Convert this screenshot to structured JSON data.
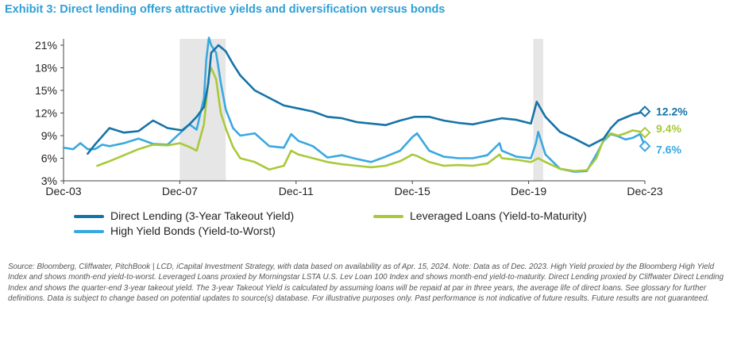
{
  "title": "Exhibit 3: Direct lending offers attractive yields and diversification versus bonds",
  "source_note": "Source: Bloomberg, Cliffwater, PitchBook | LCD, iCapital Investment Strategy, with data based on availability as of Apr. 15, 2024. Note: Data as of Dec. 2023. High Yield proxied by the Bloomberg High Yield Index and shows month-end yield-to-worst. Leveraged Loans proxied by Morningstar LSTA U.S. Lev Loan 100 Index and shows month-end yield-to-maturity. Direct Lending proxied by Cliffwater Direct Lending Index and shows the quarter-end 3-year takeout yield. The 3-year Takeout Yield is calculated by assuming loans will be repaid at par in three years, the average life of direct loans. See glossary for further definitions. Data is subject to change based on potential updates to source(s) database. For illustrative purposes only. Past performance is not indicative of future results. Future results are not guaranteed.",
  "chart_data": {
    "type": "line",
    "x_ticks": [
      "Dec-03",
      "Dec-07",
      "Dec-11",
      "Dec-15",
      "Dec-19",
      "Dec-23"
    ],
    "y_ticks": [
      "3%",
      "6%",
      "9%",
      "12%",
      "15%",
      "18%",
      "21%"
    ],
    "ylim": [
      3,
      22
    ],
    "xlim": [
      2003.92,
      2023.92
    ],
    "grid": false,
    "legend_position": "bottom",
    "recession_shading": [
      [
        2007.92,
        2009.5
      ],
      [
        2020.08,
        2020.42
      ]
    ],
    "series": [
      {
        "name": "Direct Lending (3-Year Takeout Yield)",
        "color": "#1673a8",
        "end_label": "12.2%",
        "points": [
          [
            2004.75,
            6.6
          ],
          [
            2005.0,
            7.8
          ],
          [
            2005.5,
            10.0
          ],
          [
            2006.0,
            9.4
          ],
          [
            2006.5,
            9.6
          ],
          [
            2007.0,
            11.0
          ],
          [
            2007.5,
            10.0
          ],
          [
            2008.0,
            9.7
          ],
          [
            2008.25,
            10.5
          ],
          [
            2008.5,
            11.5
          ],
          [
            2008.75,
            12.8
          ],
          [
            2008.9,
            16.0
          ],
          [
            2009.0,
            20.0
          ],
          [
            2009.25,
            21.0
          ],
          [
            2009.5,
            20.2
          ],
          [
            2009.75,
            18.5
          ],
          [
            2010.0,
            17.0
          ],
          [
            2010.5,
            15.0
          ],
          [
            2011.0,
            14.0
          ],
          [
            2011.5,
            13.0
          ],
          [
            2012.0,
            12.6
          ],
          [
            2012.5,
            12.2
          ],
          [
            2013.0,
            11.5
          ],
          [
            2013.5,
            11.3
          ],
          [
            2014.0,
            10.8
          ],
          [
            2014.5,
            10.6
          ],
          [
            2015.0,
            10.4
          ],
          [
            2015.5,
            11.0
          ],
          [
            2016.0,
            11.5
          ],
          [
            2016.5,
            11.5
          ],
          [
            2017.0,
            11.0
          ],
          [
            2017.5,
            10.7
          ],
          [
            2018.0,
            10.5
          ],
          [
            2018.5,
            10.9
          ],
          [
            2019.0,
            11.3
          ],
          [
            2019.5,
            11.1
          ],
          [
            2020.0,
            10.6
          ],
          [
            2020.2,
            13.5
          ],
          [
            2020.5,
            11.5
          ],
          [
            2021.0,
            9.5
          ],
          [
            2021.5,
            8.6
          ],
          [
            2022.0,
            7.6
          ],
          [
            2022.5,
            8.6
          ],
          [
            2022.75,
            10.0
          ],
          [
            2023.0,
            11.0
          ],
          [
            2023.5,
            11.8
          ],
          [
            2023.92,
            12.2
          ]
        ]
      },
      {
        "name": "High Yield Bonds (Yield-to-Worst)",
        "color": "#3aa8e0",
        "end_label": "7.6%",
        "points": [
          [
            2003.92,
            7.4
          ],
          [
            2004.25,
            7.2
          ],
          [
            2004.5,
            8.0
          ],
          [
            2004.75,
            7.2
          ],
          [
            2005.0,
            7.2
          ],
          [
            2005.25,
            7.8
          ],
          [
            2005.5,
            7.6
          ],
          [
            2006.0,
            8.0
          ],
          [
            2006.5,
            8.6
          ],
          [
            2007.0,
            7.9
          ],
          [
            2007.5,
            7.8
          ],
          [
            2007.92,
            9.3
          ],
          [
            2008.25,
            10.5
          ],
          [
            2008.5,
            9.8
          ],
          [
            2008.75,
            14.0
          ],
          [
            2008.83,
            19.0
          ],
          [
            2008.92,
            22.0
          ],
          [
            2009.0,
            21.0
          ],
          [
            2009.17,
            20.0
          ],
          [
            2009.33,
            16.0
          ],
          [
            2009.5,
            12.5
          ],
          [
            2009.75,
            10.0
          ],
          [
            2010.0,
            9.0
          ],
          [
            2010.5,
            9.3
          ],
          [
            2011.0,
            7.6
          ],
          [
            2011.5,
            7.4
          ],
          [
            2011.75,
            9.2
          ],
          [
            2012.0,
            8.3
          ],
          [
            2012.5,
            7.6
          ],
          [
            2013.0,
            6.1
          ],
          [
            2013.5,
            6.4
          ],
          [
            2014.0,
            5.9
          ],
          [
            2014.5,
            5.5
          ],
          [
            2015.0,
            6.2
          ],
          [
            2015.5,
            7.0
          ],
          [
            2015.92,
            8.8
          ],
          [
            2016.08,
            9.3
          ],
          [
            2016.5,
            7.0
          ],
          [
            2017.0,
            6.2
          ],
          [
            2017.5,
            6.0
          ],
          [
            2018.0,
            6.0
          ],
          [
            2018.5,
            6.4
          ],
          [
            2018.92,
            8.0
          ],
          [
            2019.0,
            7.0
          ],
          [
            2019.5,
            6.2
          ],
          [
            2020.0,
            6.0
          ],
          [
            2020.17,
            8.0
          ],
          [
            2020.25,
            9.5
          ],
          [
            2020.5,
            6.5
          ],
          [
            2021.0,
            4.6
          ],
          [
            2021.5,
            4.2
          ],
          [
            2021.92,
            4.3
          ],
          [
            2022.25,
            6.5
          ],
          [
            2022.5,
            8.3
          ],
          [
            2022.75,
            9.2
          ],
          [
            2023.0,
            8.9
          ],
          [
            2023.25,
            8.5
          ],
          [
            2023.5,
            8.7
          ],
          [
            2023.75,
            9.2
          ],
          [
            2023.92,
            7.6
          ]
        ]
      },
      {
        "name": "Leveraged Loans (Yield-to-Maturity)",
        "color": "#a9c93a",
        "end_label": "9.4%",
        "points": [
          [
            2005.08,
            5.0
          ],
          [
            2005.5,
            5.6
          ],
          [
            2006.0,
            6.4
          ],
          [
            2006.5,
            7.2
          ],
          [
            2007.0,
            7.8
          ],
          [
            2007.5,
            7.7
          ],
          [
            2007.92,
            8.0
          ],
          [
            2008.25,
            7.5
          ],
          [
            2008.5,
            7.0
          ],
          [
            2008.75,
            10.5
          ],
          [
            2008.92,
            17.0
          ],
          [
            2009.0,
            18.0
          ],
          [
            2009.17,
            16.5
          ],
          [
            2009.33,
            12.0
          ],
          [
            2009.5,
            10.0
          ],
          [
            2009.75,
            7.5
          ],
          [
            2010.0,
            6.0
          ],
          [
            2010.5,
            5.5
          ],
          [
            2011.0,
            4.5
          ],
          [
            2011.5,
            5.0
          ],
          [
            2011.75,
            7.0
          ],
          [
            2012.0,
            6.5
          ],
          [
            2012.5,
            6.0
          ],
          [
            2013.0,
            5.5
          ],
          [
            2013.5,
            5.2
          ],
          [
            2014.0,
            5.0
          ],
          [
            2014.5,
            4.8
          ],
          [
            2015.0,
            5.0
          ],
          [
            2015.5,
            5.6
          ],
          [
            2015.92,
            6.5
          ],
          [
            2016.08,
            6.3
          ],
          [
            2016.5,
            5.5
          ],
          [
            2017.0,
            5.0
          ],
          [
            2017.5,
            5.1
          ],
          [
            2018.0,
            5.0
          ],
          [
            2018.5,
            5.3
          ],
          [
            2018.92,
            6.5
          ],
          [
            2019.0,
            6.0
          ],
          [
            2019.5,
            5.8
          ],
          [
            2020.0,
            5.5
          ],
          [
            2020.25,
            6.0
          ],
          [
            2020.5,
            5.5
          ],
          [
            2021.0,
            4.6
          ],
          [
            2021.5,
            4.3
          ],
          [
            2021.92,
            4.4
          ],
          [
            2022.25,
            6.0
          ],
          [
            2022.5,
            8.5
          ],
          [
            2022.75,
            9.3
          ],
          [
            2023.0,
            9.0
          ],
          [
            2023.25,
            9.3
          ],
          [
            2023.5,
            9.7
          ],
          [
            2023.92,
            9.4
          ]
        ]
      }
    ]
  }
}
